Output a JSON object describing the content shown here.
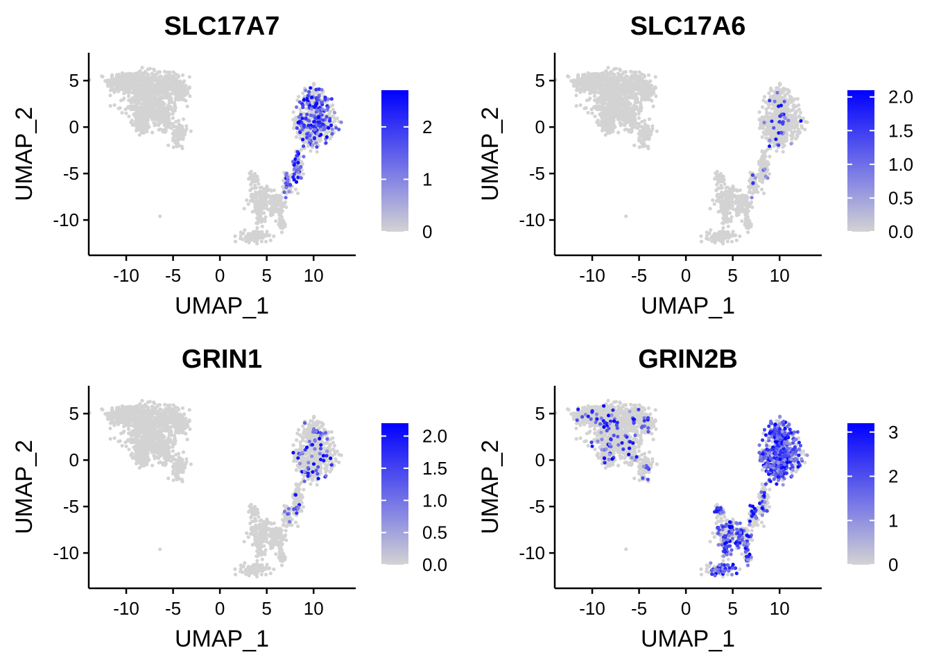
{
  "colors": {
    "low": "#d3d3d3",
    "high": "#0000ff",
    "cell": "#d3d3d3"
  },
  "chart_data": [
    {
      "type": "scatter",
      "title": "SLC17A7",
      "xlabel": "UMAP_1",
      "ylabel": "UMAP_2",
      "xlim": [
        -14,
        14.5
      ],
      "ylim": [
        -13.8,
        8
      ],
      "xticks": [
        -10,
        -5,
        0,
        5,
        10
      ],
      "xtick_labels": [
        "-10",
        "-5",
        "0",
        "5",
        "10"
      ],
      "yticks": [
        5,
        0,
        -5,
        -10
      ],
      "ytick_labels": [
        "5",
        "0",
        "-5",
        "-10"
      ],
      "color_scale": {
        "min": 0,
        "max": 2.7,
        "ticks": [
          0,
          1,
          2
        ],
        "tick_labels": [
          "0",
          "1",
          "2"
        ]
      },
      "highlight_region": "right",
      "expression_rate": 0.28,
      "grid": false,
      "legend": "right"
    },
    {
      "type": "scatter",
      "title": "SLC17A6",
      "xlabel": "UMAP_1",
      "ylabel": "UMAP_2",
      "xlim": [
        -14,
        14.5
      ],
      "ylim": [
        -13.8,
        8
      ],
      "xticks": [
        -10,
        -5,
        0,
        5,
        10
      ],
      "xtick_labels": [
        "-10",
        "-5",
        "0",
        "5",
        "10"
      ],
      "yticks": [
        5,
        0,
        -5,
        -10
      ],
      "ytick_labels": [
        "5",
        "0",
        "-5",
        "-10"
      ],
      "color_scale": {
        "min": 0,
        "max": 2.1,
        "ticks": [
          0,
          0.5,
          1,
          1.5,
          2
        ],
        "tick_labels": [
          "0.0",
          "0.5",
          "1.0",
          "1.5",
          "2.0"
        ]
      },
      "highlight_region": "right",
      "expression_rate": 0.05,
      "grid": false,
      "legend": "right"
    },
    {
      "type": "scatter",
      "title": "GRIN1",
      "xlabel": "UMAP_1",
      "ylabel": "UMAP_2",
      "xlim": [
        -14,
        14.5
      ],
      "ylim": [
        -13.8,
        8
      ],
      "xticks": [
        -10,
        -5,
        0,
        5,
        10
      ],
      "xtick_labels": [
        "-10",
        "-5",
        "0",
        "5",
        "10"
      ],
      "yticks": [
        5,
        0,
        -5,
        -10
      ],
      "ytick_labels": [
        "5",
        "0",
        "-5",
        "-10"
      ],
      "color_scale": {
        "min": 0,
        "max": 2.2,
        "ticks": [
          0,
          0.5,
          1,
          1.5,
          2
        ],
        "tick_labels": [
          "0.0",
          "0.5",
          "1.0",
          "1.5",
          "2.0"
        ]
      },
      "highlight_region": "right",
      "expression_rate": 0.09,
      "grid": false,
      "legend": "right"
    },
    {
      "type": "scatter",
      "title": "GRIN2B",
      "xlabel": "UMAP_1",
      "ylabel": "UMAP_2",
      "xlim": [
        -14,
        14.5
      ],
      "ylim": [
        -13.8,
        8
      ],
      "xticks": [
        -10,
        -5,
        0,
        5,
        10
      ],
      "xtick_labels": [
        "-10",
        "-5",
        "0",
        "5",
        "10"
      ],
      "yticks": [
        5,
        0,
        -5,
        -10
      ],
      "ytick_labels": [
        "5",
        "0",
        "-5",
        "-10"
      ],
      "color_scale": {
        "min": 0,
        "max": 3.2,
        "ticks": [
          0,
          1,
          2,
          3
        ],
        "tick_labels": [
          "0",
          "1",
          "2",
          "3"
        ]
      },
      "highlight_region": "all",
      "expression_rate": 0.55,
      "grid": false,
      "legend": "right"
    }
  ]
}
